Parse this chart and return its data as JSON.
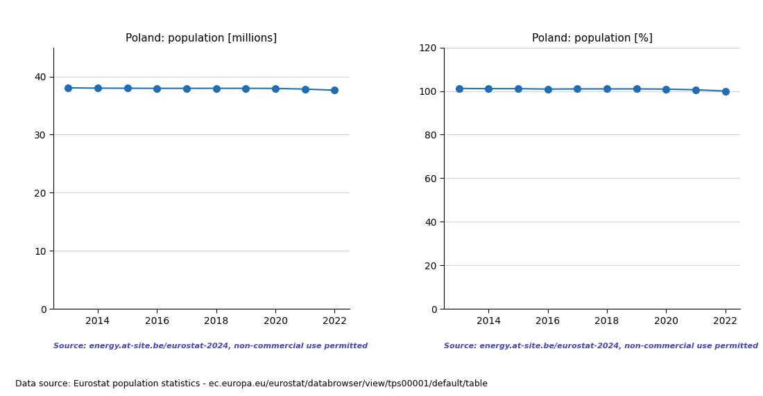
{
  "years": [
    2013,
    2014,
    2015,
    2016,
    2017,
    2018,
    2019,
    2020,
    2021,
    2022
  ],
  "population_millions": [
    38.06,
    38.0,
    37.99,
    37.97,
    37.97,
    37.98,
    37.97,
    37.96,
    37.84,
    37.65
  ],
  "population_pct": [
    101.2,
    101.1,
    101.1,
    100.9,
    101.0,
    101.0,
    101.0,
    100.9,
    100.6,
    100.0
  ],
  "title_millions": "Poland: population [millions]",
  "title_pct": "Poland: population [%]",
  "source_text": "Source: energy.at-site.be/eurostat-2024, non-commercial use permitted",
  "bottom_text": "Data source: Eurostat population statistics - ec.europa.eu/eurostat/databrowser/view/tps00001/default/table",
  "line_color": "#1f6eb5",
  "source_color": "#4444bb",
  "ylim_millions": [
    0,
    45
  ],
  "ylim_pct": [
    0,
    120
  ],
  "yticks_millions": [
    0,
    10,
    20,
    30,
    40
  ],
  "yticks_pct": [
    0,
    20,
    40,
    60,
    80,
    100,
    120
  ],
  "xticks": [
    2014,
    2016,
    2018,
    2020,
    2022
  ],
  "marker_size": 7,
  "line_width": 1.5,
  "figsize": [
    11.0,
    5.72
  ],
  "dpi": 100
}
